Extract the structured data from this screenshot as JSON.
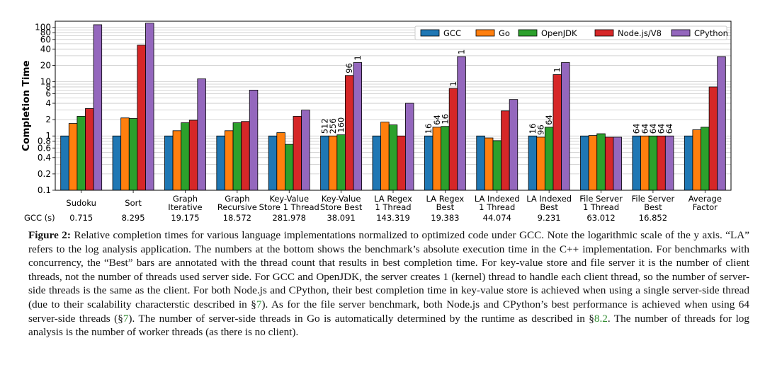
{
  "chart_data": {
    "type": "bar",
    "scale": "log",
    "ylabel": "Completion Time",
    "ylim": [
      0.1,
      130
    ],
    "yticks": [
      {
        "v": 0.1,
        "label": "0.1"
      },
      {
        "v": 0.2,
        "label": "0.2"
      },
      {
        "v": 0.4,
        "label": "0.4"
      },
      {
        "v": 0.6,
        "label": "0.6"
      },
      {
        "v": 0.8,
        "label": "0.8"
      },
      {
        "v": 1,
        "label": "1"
      },
      {
        "v": 2,
        "label": "2"
      },
      {
        "v": 4,
        "label": "4"
      },
      {
        "v": 6,
        "label": "6"
      },
      {
        "v": 8,
        "label": "8"
      },
      {
        "v": 10,
        "label": "10"
      },
      {
        "v": 20,
        "label": "20"
      },
      {
        "v": 40,
        "label": "40"
      },
      {
        "v": 60,
        "label": "60"
      },
      {
        "v": 80,
        "label": "80"
      },
      {
        "v": 100,
        "label": "100"
      }
    ],
    "grid": true,
    "legend_position": "top-right",
    "categories": [
      [
        "Sudoku"
      ],
      [
        "Sort"
      ],
      [
        "Graph",
        "Iterative"
      ],
      [
        "Graph",
        "Recursive"
      ],
      [
        "Key-Value",
        "Store 1 Thread"
      ],
      [
        "Key-Value",
        "Store Best"
      ],
      [
        "LA Regex",
        "1 Thread"
      ],
      [
        "LA Regex",
        "Best"
      ],
      [
        "LA Indexed",
        "1 Thread"
      ],
      [
        "LA Indexed",
        "Best"
      ],
      [
        "File Server",
        "1 Thread"
      ],
      [
        "File Server",
        "Best"
      ],
      [
        "Average",
        "Factor"
      ]
    ],
    "series": [
      {
        "name": "GCC",
        "color": "#1f77b4",
        "values": [
          1,
          1,
          1,
          1,
          1,
          1,
          1,
          1,
          1,
          1,
          1,
          1,
          1
        ],
        "labels": [
          "",
          "",
          "",
          "",
          "",
          "512",
          "",
          "16",
          "",
          "16",
          "",
          "64",
          ""
        ]
      },
      {
        "name": "Go",
        "color": "#ff7f0e",
        "values": [
          1.7,
          2.15,
          1.25,
          1.25,
          1.15,
          1.0,
          1.8,
          1.45,
          0.92,
          0.95,
          1.02,
          1.0,
          1.3
        ],
        "labels": [
          "",
          "",
          "",
          "",
          "",
          "256",
          "",
          "64",
          "",
          "96",
          "",
          "64",
          ""
        ]
      },
      {
        "name": "OpenJDK",
        "color": "#2ca02c",
        "values": [
          2.3,
          2.1,
          1.75,
          1.75,
          0.7,
          1.05,
          1.6,
          1.5,
          0.82,
          1.45,
          1.1,
          1.0,
          1.45
        ],
        "labels": [
          "",
          "",
          "",
          "",
          "",
          "160",
          "",
          "16",
          "",
          "64",
          "",
          "64",
          ""
        ]
      },
      {
        "name": "Node.js/V8",
        "color": "#d62728",
        "values": [
          3.2,
          47,
          1.95,
          1.85,
          2.3,
          13,
          1.0,
          7.5,
          2.9,
          13.5,
          0.95,
          1.0,
          8.0
        ],
        "labels": [
          "",
          "",
          "",
          "",
          "",
          "96",
          "",
          "1",
          "",
          "1",
          "",
          "64",
          ""
        ]
      },
      {
        "name": "CPython",
        "color": "#9467bd",
        "values": [
          112,
          120,
          11.3,
          7.0,
          3.0,
          22.5,
          4.0,
          29,
          4.7,
          22.5,
          0.95,
          1.0,
          29
        ],
        "labels": [
          "",
          "",
          "",
          "",
          "",
          "1",
          "",
          "1",
          "",
          "",
          "",
          "64",
          ""
        ]
      }
    ],
    "footer_label": "GCC (s)",
    "footer_values": [
      "0.715",
      "8.295",
      "19.175",
      "18.572",
      "281.978",
      "38.091",
      "143.319",
      "19.383",
      "44.074",
      "9.231",
      "63.012",
      "16.852",
      ""
    ]
  },
  "caption": {
    "label": "Figure 2:",
    "p1": " Relative completion times for various language implementations normalized to optimized code under GCC. Note the logarithmic scale of the y axis. “LA” refers to the log analysis application. The numbers at the bottom shows the benchmark’s absolute execution time in the C++ implementation. For benchmarks with concurrency, the “Best” bars are annotated with the thread count that results in best completion time. For key-value store and file server it is the number of client threads, not the number of threads used server side. For GCC and OpenJDK, the server creates 1 (kernel) thread to handle each client thread, so the number of server-side threads is the same as the client. For both Node.js and CPython, their best completion time in key-value store is achieved when using a single server-side thread (due to their scalability characterstic described in §",
    "ref1": "7",
    "p2": "). As for the file server benchmark, both Node.js and CPython’s best performance is achieved when using 64 server-side threads (§",
    "ref2": "7",
    "p3": "). The number of server-side threads in Go is automatically determined by the runtime as described in §",
    "ref3": "8.2",
    "p4": ". The number of threads for log analysis is the number of worker threads (as there is no client)."
  }
}
